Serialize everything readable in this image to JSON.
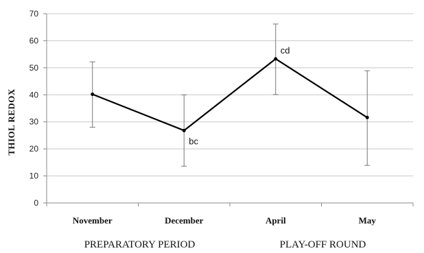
{
  "chart_data": {
    "type": "line",
    "ylabel": "THIOL REDOX",
    "ylim": [
      0,
      70
    ],
    "yticks": [
      0,
      10,
      20,
      30,
      40,
      50,
      60,
      70
    ],
    "grid": true,
    "categories": [
      "November",
      "December",
      "April",
      "May"
    ],
    "series": [
      {
        "values": [
          40.2,
          26.8,
          53.3,
          31.6
        ],
        "error_low": [
          28.0,
          13.6,
          40.1,
          13.9
        ],
        "error_high": [
          52.2,
          40.0,
          66.2,
          48.9
        ],
        "labels": [
          "",
          "bc",
          "cd",
          ""
        ]
      }
    ],
    "groups": [
      {
        "label": "PREPARATORY PERIOD",
        "categories": [
          "November",
          "December"
        ]
      },
      {
        "label": "PLAY-OFF ROUND",
        "categories": [
          "April",
          "May"
        ]
      }
    ],
    "colors": {
      "line": "#000000",
      "grid": "#c8c8c8",
      "axis": "#888888",
      "errorbar": "#777777"
    }
  }
}
